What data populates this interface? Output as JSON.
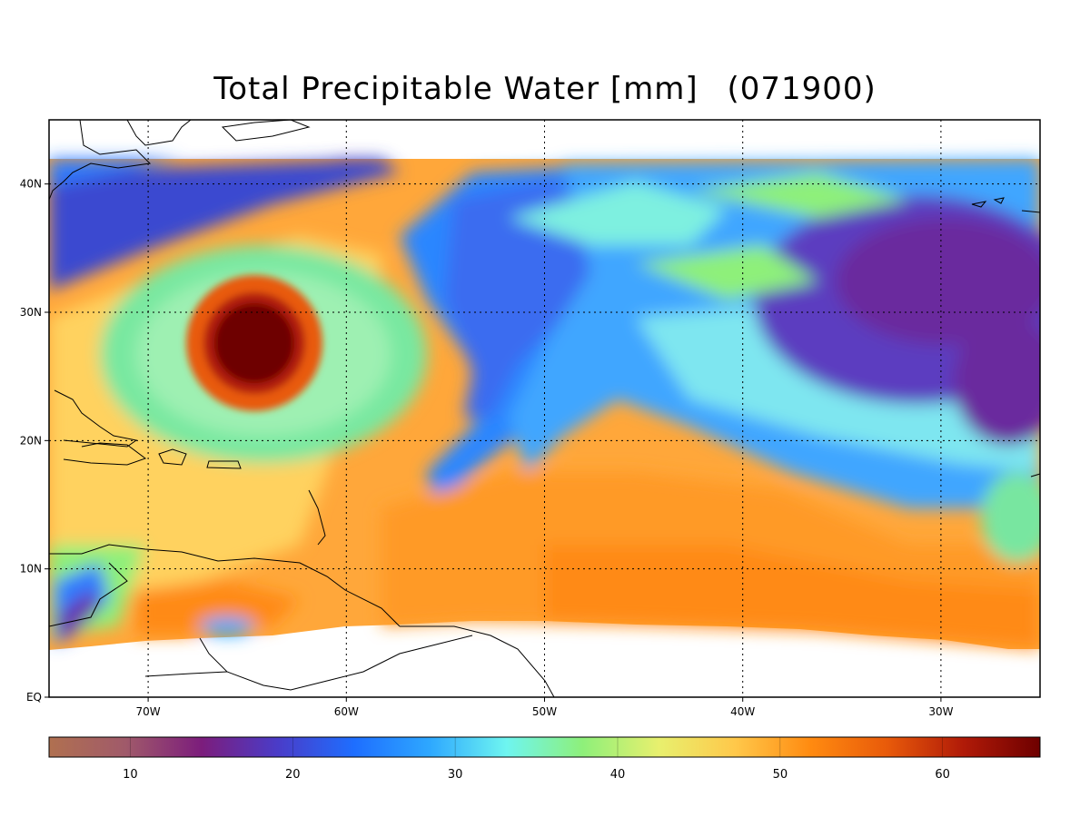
{
  "title": {
    "text": "Total Precipitable Water [mm]",
    "time": "(071900)"
  },
  "map": {
    "lat_labels": [
      "40N",
      "30N",
      "20N",
      "10N",
      "EQ"
    ],
    "lon_labels": [
      "70W",
      "60W",
      "50W",
      "40W",
      "30W"
    ],
    "lat_values": [
      40,
      30,
      20,
      10,
      0
    ],
    "lon_values": [
      -70,
      -60,
      -50,
      -40,
      -30
    ],
    "extent": {
      "lon_min": -75,
      "lon_max": -25,
      "lat_min": 0,
      "lat_max": 45
    },
    "gridlines": "dotted",
    "hurricane_center": {
      "lon": -65.2,
      "lat": 27.8
    }
  },
  "colorbar": {
    "ticks": [
      "10",
      "20",
      "30",
      "40",
      "50",
      "60"
    ],
    "tick_values": [
      10,
      20,
      30,
      40,
      50,
      60
    ],
    "range": [
      5,
      66
    ],
    "units": "mm",
    "colors": [
      "#b07050",
      "#a05a6a",
      "#7c1d7c",
      "#4a3cc8",
      "#1e6eff",
      "#2ea8ff",
      "#6ef5f0",
      "#8ef07a",
      "#e8f06e",
      "#ffc84a",
      "#ff8a10",
      "#e85a0a",
      "#b01a08",
      "#6e0000"
    ]
  }
}
